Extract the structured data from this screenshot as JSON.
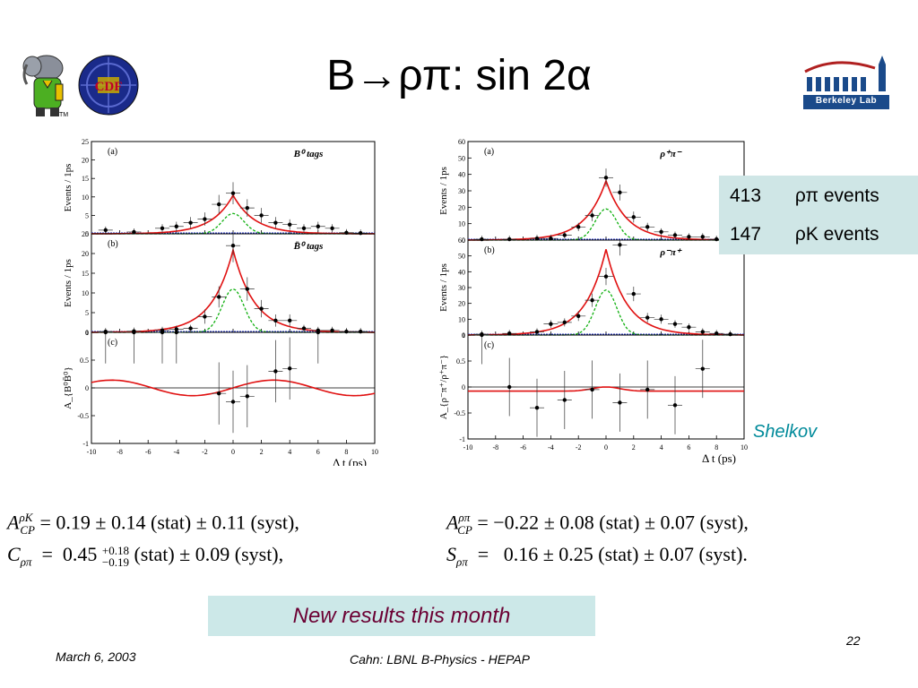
{
  "slide": {
    "title": "B→ρπ: sin 2α",
    "page_number": "22",
    "date": "March 6, 2003",
    "footer": "Cahn:  LBNL B-Physics - HEPAP",
    "tm": "TM",
    "logo_text": "Berkeley Lab",
    "shelkov": "Shelkov"
  },
  "events_box": {
    "rows": [
      {
        "count": "413",
        "label": "ρπ  events"
      },
      {
        "count": "147",
        "label": "ρK events"
      }
    ]
  },
  "results_banner": "New results this month",
  "formulas": {
    "left_line1": "A_CP^ρK = 0.19 ± 0.14 (stat) ± 0.11 (syst),",
    "left_line2": "C_ρπ = 0.45 +0.18 −0.19 (stat) ± 0.09 (syst),",
    "right_line1": "A_CP^ρπ = −0.22 ± 0.08 (stat) ± 0.07 (syst),",
    "right_line2": "S_ρπ = 0.16 ± 0.25 (stat) ± 0.07 (syst).",
    "acp_rk": {
      "value": "0.19",
      "stat": "± 0.14",
      "syst": "± 0.11"
    },
    "c_rp": {
      "value": "0.45",
      "stat_up": "+0.18",
      "stat_dn": "−0.19",
      "syst": "± 0.09"
    },
    "acp_rp": {
      "value": "−0.22",
      "stat": "± 0.08",
      "syst": "± 0.07"
    },
    "s_rp": {
      "value": "0.16",
      "stat": "± 0.25",
      "syst": "± 0.07"
    },
    "stat_label": "(stat)",
    "syst_label": "(syst),",
    "syst_label_end": "(syst)."
  },
  "chart_data": [
    {
      "type": "scatter",
      "id": "left",
      "xlabel": "Δ t (ps)",
      "x_ticks": [
        "-10",
        "-8",
        "-6",
        "-4",
        "-2",
        "0",
        "2",
        "4",
        "6",
        "8",
        "10"
      ],
      "xlim": [
        -10,
        10
      ],
      "panels": [
        {
          "label": "(a)",
          "tag": "B⁰ tags",
          "ylabel": "Events / 1ps",
          "ylim": [
            0,
            25
          ],
          "y_ticks": [
            "0",
            "5",
            "10",
            "15",
            "20",
            "25"
          ],
          "points": [
            [
              -9,
              1
            ],
            [
              -7,
              0.5
            ],
            [
              -5,
              1.5
            ],
            [
              -4,
              2
            ],
            [
              -3,
              3
            ],
            [
              -2,
              4
            ],
            [
              -1,
              8
            ],
            [
              0,
              11
            ],
            [
              1,
              7
            ],
            [
              2,
              5
            ],
            [
              3,
              3
            ],
            [
              4,
              2.5
            ],
            [
              5,
              1.5
            ],
            [
              6,
              2
            ],
            [
              7,
              1.5
            ],
            [
              8,
              0.3
            ],
            [
              9,
              0.2
            ]
          ]
        },
        {
          "label": "(b)",
          "tag": "B̄⁰ tags",
          "ylabel": "Events / 1ps",
          "ylim": [
            0,
            25
          ],
          "y_ticks": [
            "0",
            "5",
            "10",
            "15",
            "20",
            "25"
          ],
          "points": [
            [
              -9,
              0.2
            ],
            [
              -7,
              0.3
            ],
            [
              -5,
              0.5
            ],
            [
              -4,
              0.8
            ],
            [
              -3,
              1
            ],
            [
              -2,
              4
            ],
            [
              -1,
              9
            ],
            [
              0,
              22
            ],
            [
              1,
              11
            ],
            [
              2,
              6
            ],
            [
              3,
              3
            ],
            [
              4,
              3
            ],
            [
              5,
              1
            ],
            [
              6,
              0.5
            ],
            [
              7,
              0.5
            ],
            [
              8,
              0.2
            ],
            [
              9,
              0.2
            ]
          ]
        },
        {
          "label": "(c)",
          "ylabel": "A_{B⁰B̄⁰}",
          "ylim": [
            -1,
            1
          ],
          "y_ticks": [
            "-1",
            "-0.5",
            "0",
            "0.5",
            "1"
          ],
          "points": [
            [
              -9,
              1
            ],
            [
              -7,
              1
            ],
            [
              -5,
              1
            ],
            [
              -4,
              1
            ],
            [
              -1,
              -0.1
            ],
            [
              0,
              -0.25
            ],
            [
              1,
              -0.15
            ],
            [
              3,
              0.3
            ],
            [
              4,
              0.35
            ],
            [
              6,
              1
            ]
          ]
        }
      ]
    },
    {
      "type": "scatter",
      "id": "right",
      "xlabel": "Δ t (ps)",
      "x_ticks": [
        "-10",
        "-8",
        "-6",
        "-4",
        "-2",
        "0",
        "2",
        "4",
        "6",
        "8",
        "10"
      ],
      "xlim": [
        -10,
        10
      ],
      "panels": [
        {
          "label": "(a)",
          "tag": "ρ⁺π⁻",
          "ylabel": "Events / 1ps",
          "ylim": [
            0,
            60
          ],
          "y_ticks": [
            "0",
            "10",
            "20",
            "30",
            "40",
            "50",
            "60"
          ],
          "points": [
            [
              -9,
              0.5
            ],
            [
              -7,
              0.5
            ],
            [
              -5,
              1
            ],
            [
              -4,
              1
            ],
            [
              -3,
              3
            ],
            [
              -2,
              8
            ],
            [
              -1,
              15
            ],
            [
              0,
              38
            ],
            [
              1,
              29
            ],
            [
              2,
              14
            ],
            [
              3,
              8
            ],
            [
              4,
              5
            ],
            [
              5,
              3
            ],
            [
              6,
              2
            ],
            [
              7,
              2
            ],
            [
              8,
              0.5
            ],
            [
              9,
              0.5
            ]
          ]
        },
        {
          "label": "(b)",
          "tag": "ρ⁻π⁺",
          "ylabel": "Events / 1ps",
          "ylim": [
            0,
            60
          ],
          "y_ticks": [
            "0",
            "10",
            "20",
            "30",
            "40",
            "50",
            "60"
          ],
          "points": [
            [
              -9,
              0.5
            ],
            [
              -7,
              1
            ],
            [
              -5,
              2
            ],
            [
              -4,
              7
            ],
            [
              -3,
              8
            ],
            [
              -2,
              12
            ],
            [
              -1,
              22
            ],
            [
              0,
              37
            ],
            [
              1,
              57
            ],
            [
              2,
              26
            ],
            [
              3,
              11
            ],
            [
              4,
              10
            ],
            [
              5,
              7
            ],
            [
              6,
              5
            ],
            [
              7,
              2
            ],
            [
              8,
              1
            ],
            [
              9,
              0.5
            ]
          ]
        },
        {
          "label": "(c)",
          "ylabel": "A_{ρ⁻π⁺/ρ⁺π⁻}",
          "ylim": [
            -1,
            1
          ],
          "y_ticks": [
            "-1",
            "-0.5",
            "0",
            "0.5",
            "1"
          ],
          "points": [
            [
              -9,
              1
            ],
            [
              -7,
              0
            ],
            [
              -5,
              -0.4
            ],
            [
              -3,
              -0.25
            ],
            [
              -1,
              -0.05
            ],
            [
              1,
              -0.3
            ],
            [
              3,
              -0.05
            ],
            [
              5,
              -0.35
            ],
            [
              7,
              0.35
            ]
          ]
        }
      ]
    }
  ]
}
